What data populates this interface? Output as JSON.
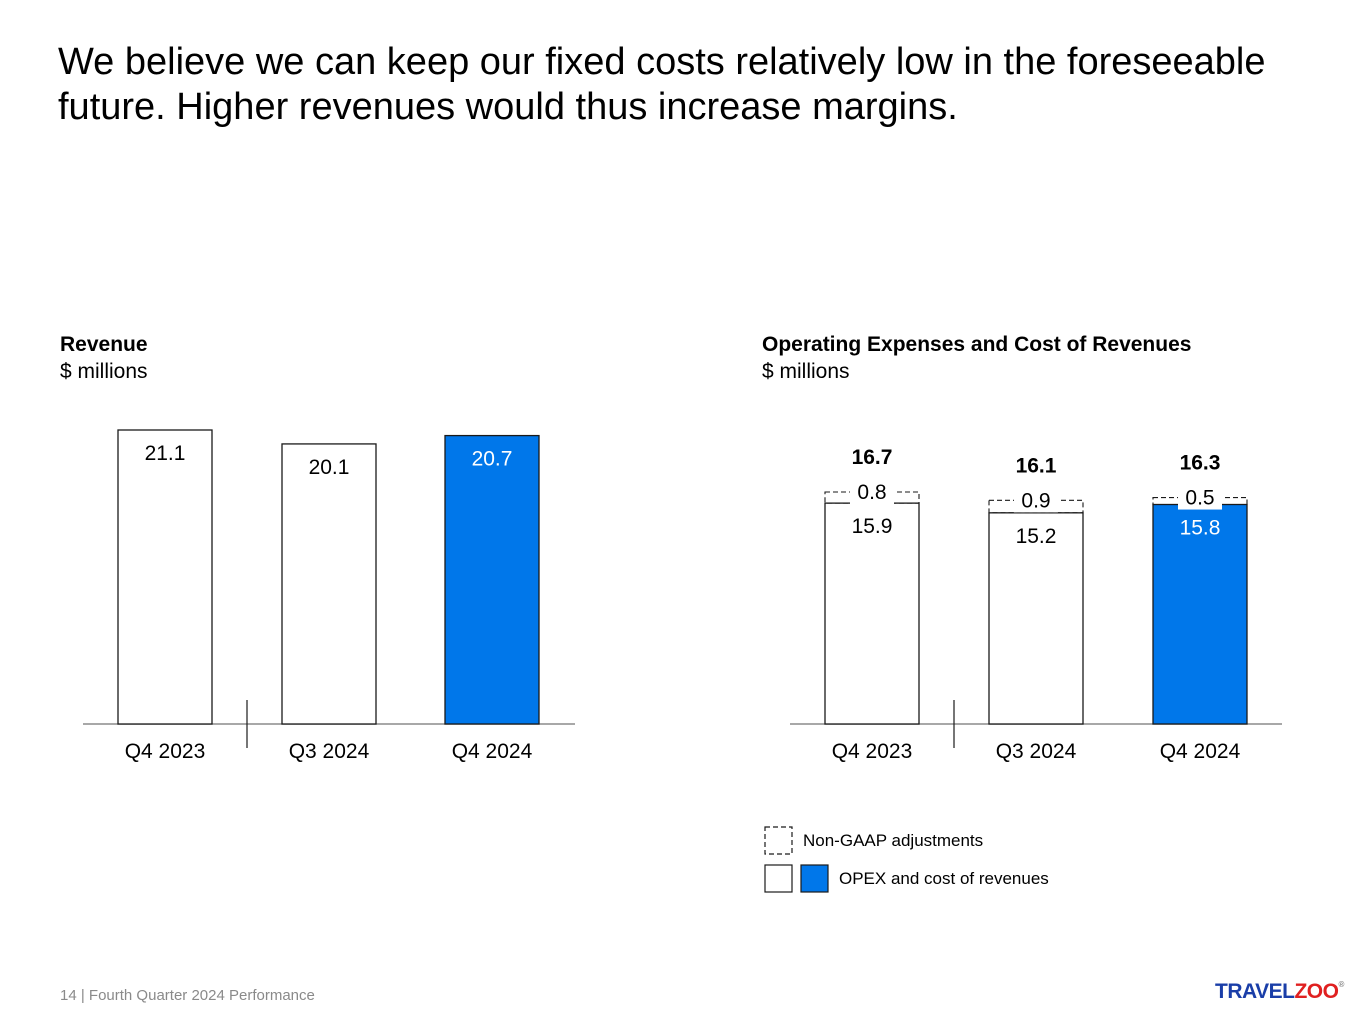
{
  "headline": "We believe we can keep our fixed costs relatively low in the foreseeable future. Higher revenues would thus increase margins.",
  "colors": {
    "accent": "#0077ea",
    "outline": "#1a1a1a",
    "axis": "#8c8c8c"
  },
  "chart_data": [
    {
      "type": "bar",
      "title": "Revenue",
      "subtitle": "$ millions",
      "categories": [
        "Q4 2023",
        "Q3 2024",
        "Q4 2024"
      ],
      "values": [
        21.1,
        20.1,
        20.7
      ],
      "labels": [
        "21.1",
        "20.1",
        "20.7"
      ],
      "highlight": [
        false,
        false,
        true
      ],
      "ylim": [
        0,
        21.1
      ],
      "grid": false
    },
    {
      "type": "bar",
      "stacked": true,
      "title": "Operating Expenses and Cost of Revenues",
      "subtitle": "$ millions",
      "categories": [
        "Q4 2023",
        "Q3 2024",
        "Q4 2024"
      ],
      "series": [
        {
          "name": "OPEX and cost of revenues",
          "values": [
            15.9,
            15.2,
            15.8
          ],
          "labels": [
            "15.9",
            "15.2",
            "15.8"
          ]
        },
        {
          "name": "Non-GAAP adjustments",
          "values": [
            0.8,
            0.9,
            0.5
          ],
          "labels": [
            "0.8",
            "0.9",
            "0.5"
          ]
        }
      ],
      "totals": [
        16.7,
        16.1,
        16.3
      ],
      "total_labels": [
        "16.7",
        "16.1",
        "16.3"
      ],
      "highlight": [
        false,
        false,
        true
      ],
      "ylim": [
        0,
        16.7
      ],
      "grid": false,
      "legend": {
        "placement": "bottom-left",
        "items": [
          {
            "label": "Non-GAAP adjustments",
            "style": "dashed"
          },
          {
            "label": "OPEX and cost of revenues",
            "style": "solid-pair"
          }
        ]
      }
    }
  ],
  "footer": "14 | Fourth Quarter 2024 Performance",
  "logo": {
    "main": "TRAVEL",
    "accent": "ZOO",
    "mark": "®"
  }
}
